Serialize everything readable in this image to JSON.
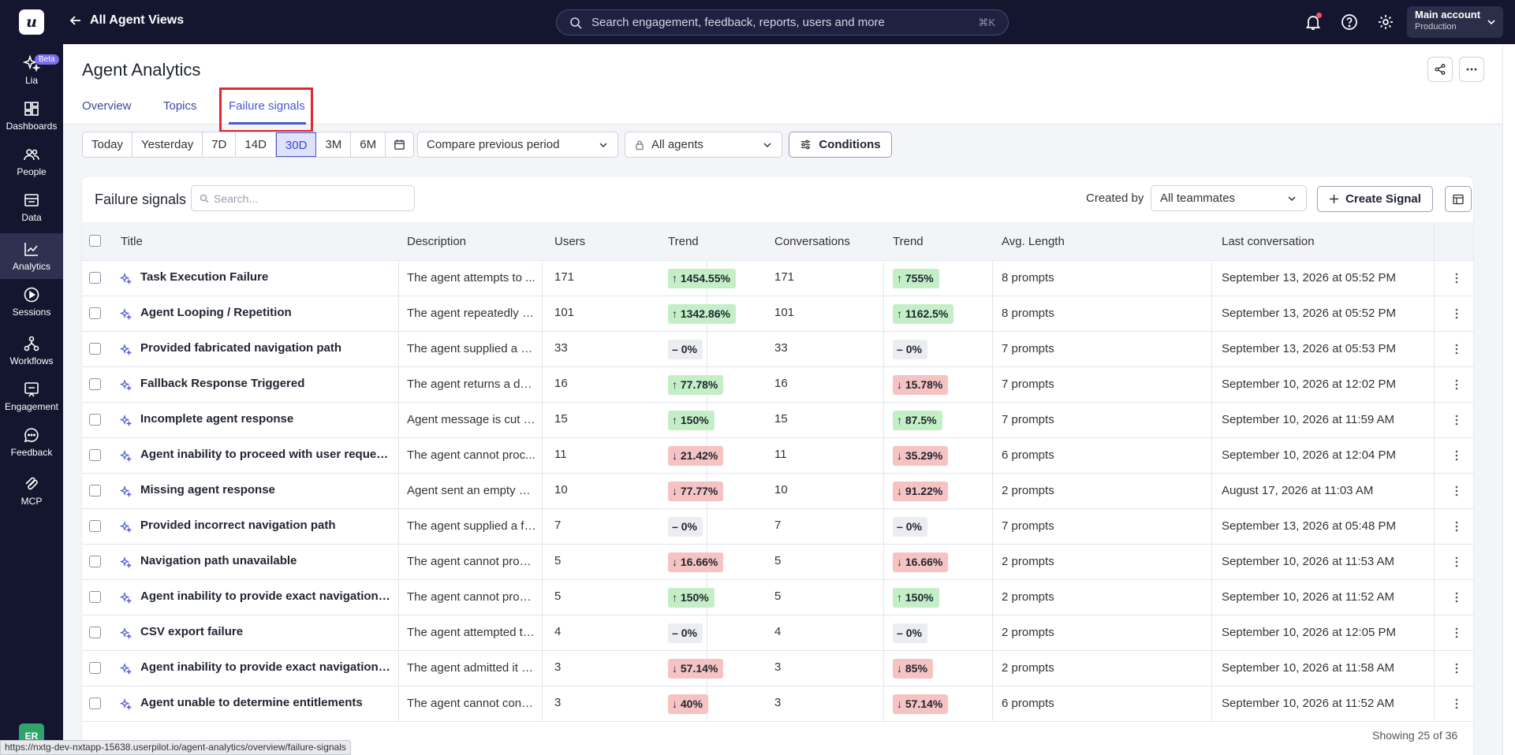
{
  "topbar": {
    "logo_letter": "u",
    "back_label": "All Agent Views",
    "search_placeholder": "Search engagement, feedback, reports, users and more",
    "search_shortcut": "⌘K",
    "account_name": "Main account",
    "account_env": "Production"
  },
  "sidebar": {
    "beta_label": "Beta",
    "items": [
      {
        "label": "Lia",
        "icon": "sparkle-icon"
      },
      {
        "label": "Dashboards",
        "icon": "dashboard-icon"
      },
      {
        "label": "People",
        "icon": "people-icon"
      },
      {
        "label": "Data",
        "icon": "data-icon"
      },
      {
        "label": "Analytics",
        "icon": "analytics-icon",
        "active": true
      },
      {
        "label": "Sessions",
        "icon": "play-icon"
      },
      {
        "label": "Workflows",
        "icon": "workflow-icon"
      },
      {
        "label": "Engagement",
        "icon": "engagement-icon"
      },
      {
        "label": "Feedback",
        "icon": "feedback-icon"
      },
      {
        "label": "MCP",
        "icon": "mcp-icon"
      }
    ],
    "avatar_initials": "ER"
  },
  "header": {
    "title": "Agent Analytics",
    "tabs": [
      {
        "label": "Overview"
      },
      {
        "label": "Topics"
      },
      {
        "label": "Failure signals",
        "active": true
      }
    ]
  },
  "filters": {
    "ranges": [
      "Today",
      "Yesterday",
      "7D",
      "14D",
      "30D",
      "3M",
      "6M"
    ],
    "active_range": "30D",
    "compare": "Compare previous period",
    "agents": "All agents",
    "conditions_label": "Conditions"
  },
  "card": {
    "title": "Failure signals",
    "search_placeholder": "Search...",
    "created_by_label": "Created by",
    "created_by_value": "All teammates",
    "create_button": "Create Signal",
    "columns": [
      "Title",
      "Description",
      "Users",
      "Trend",
      "Conversations",
      "Trend",
      "Avg. Length",
      "Last conversation"
    ],
    "rows": [
      {
        "title": "Task Execution Failure",
        "description": "The agent attempts to ...",
        "users": "171",
        "users_trend": "1454.55%",
        "users_dir": "up",
        "conversations": "171",
        "conv_trend": "755%",
        "conv_dir": "up",
        "avg_length": "8 prompts",
        "last": "September 13, 2026 at 05:52 PM"
      },
      {
        "title": "Agent Looping / Repetition",
        "description": "The agent repeatedly gi...",
        "users": "101",
        "users_trend": "1342.86%",
        "users_dir": "up",
        "conversations": "101",
        "conv_trend": "1162.5%",
        "conv_dir": "up",
        "avg_length": "8 prompts",
        "last": "September 13, 2026 at 05:52 PM"
      },
      {
        "title": "Provided fabricated navigation path",
        "description": "The agent supplied a m...",
        "users": "33",
        "users_trend": "0%",
        "users_dir": "flat",
        "conversations": "33",
        "conv_trend": "0%",
        "conv_dir": "flat",
        "avg_length": "7 prompts",
        "last": "September 13, 2026 at 05:53 PM"
      },
      {
        "title": "Fallback Response Triggered",
        "description": "The agent returns a def...",
        "users": "16",
        "users_trend": "77.78%",
        "users_dir": "up",
        "conversations": "16",
        "conv_trend": "15.78%",
        "conv_dir": "down",
        "avg_length": "7 prompts",
        "last": "September 10, 2026 at 12:02 PM"
      },
      {
        "title": "Incomplete agent response",
        "description": "Agent message is cut o...",
        "users": "15",
        "users_trend": "150%",
        "users_dir": "up",
        "conversations": "15",
        "conv_trend": "87.5%",
        "conv_dir": "up",
        "avg_length": "7 prompts",
        "last": "September 10, 2026 at 11:59 AM"
      },
      {
        "title": "Agent inability to proceed with user request i...",
        "description": "The agent cannot proc...",
        "users": "11",
        "users_trend": "21.42%",
        "users_dir": "down",
        "conversations": "11",
        "conv_trend": "35.29%",
        "conv_dir": "down",
        "avg_length": "6 prompts",
        "last": "September 10, 2026 at 12:04 PM"
      },
      {
        "title": "Missing agent response",
        "description": "Agent sent an empty m...",
        "users": "10",
        "users_trend": "77.77%",
        "users_dir": "down",
        "conversations": "10",
        "conv_trend": "91.22%",
        "conv_dir": "down",
        "avg_length": "2 prompts",
        "last": "August 17, 2026 at 11:03 AM"
      },
      {
        "title": "Provided incorrect navigation path",
        "description": "The agent supplied a fa...",
        "users": "7",
        "users_trend": "0%",
        "users_dir": "flat",
        "conversations": "7",
        "conv_trend": "0%",
        "conv_dir": "flat",
        "avg_length": "7 prompts",
        "last": "September 13, 2026 at 05:48 PM"
      },
      {
        "title": "Navigation path unavailable",
        "description": "The agent cannot provi...",
        "users": "5",
        "users_trend": "16.66%",
        "users_dir": "down",
        "conversations": "5",
        "conv_trend": "16.66%",
        "conv_dir": "down",
        "avg_length": "2 prompts",
        "last": "September 10, 2026 at 11:53 AM"
      },
      {
        "title": "Agent inability to provide exact navigation p...",
        "description": "The agent cannot provi...",
        "users": "5",
        "users_trend": "150%",
        "users_dir": "up",
        "conversations": "5",
        "conv_trend": "150%",
        "conv_dir": "up",
        "avg_length": "2 prompts",
        "last": "September 10, 2026 at 11:52 AM"
      },
      {
        "title": "CSV export failure",
        "description": "The agent attempted to...",
        "users": "4",
        "users_trend": "0%",
        "users_dir": "flat",
        "conversations": "4",
        "conv_trend": "0%",
        "conv_dir": "flat",
        "avg_length": "2 prompts",
        "last": "September 10, 2026 at 12:05 PM"
      },
      {
        "title": "Agent inability to provide exact navigation p...",
        "description": "The agent admitted it c...",
        "users": "3",
        "users_trend": "57.14%",
        "users_dir": "down",
        "conversations": "3",
        "conv_trend": "85%",
        "conv_dir": "down",
        "avg_length": "2 prompts",
        "last": "September 10, 2026 at 11:58 AM"
      },
      {
        "title": "Agent unable to determine entitlements",
        "description": "The agent cannot confi...",
        "users": "3",
        "users_trend": "40%",
        "users_dir": "down",
        "conversations": "3",
        "conv_trend": "57.14%",
        "conv_dir": "down",
        "avg_length": "6 prompts",
        "last": "September 10, 2026 at 11:52 AM"
      }
    ],
    "footer": "Showing 25 of 36"
  },
  "status_url": "https://nxtg-dev-nxtapp-15638.userpilot.io/agent-analytics/overview/failure-signals",
  "colors": {
    "nav_bg": "#14162f",
    "accent": "#4b57d6",
    "trend_up": "#c4efc6",
    "trend_down": "#f6c3c3",
    "trend_flat": "#ecedf1",
    "highlight": "#e0282e"
  }
}
